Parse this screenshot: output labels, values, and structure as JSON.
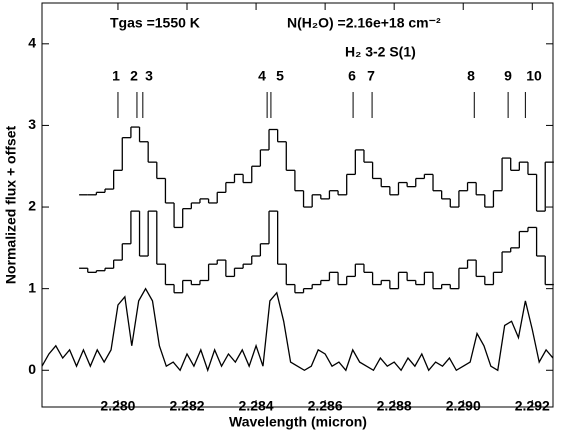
{
  "chart_data": {
    "type": "line",
    "xlabel": "Wavelength (micron)",
    "ylabel": "Normalized flux + offset",
    "annotations": [
      "Tgas =1550 K",
      "N(H₂O) =2.16e+18 cm⁻²",
      "H₂ 3-2 S(1)"
    ],
    "line_markers": {
      "labels": [
        "1",
        "2",
        "3",
        "4",
        "5",
        "6",
        "7",
        "8",
        "9",
        "10"
      ],
      "x": [
        2.28,
        2.28055,
        2.28072,
        2.28432,
        2.28443,
        2.28681,
        2.28736,
        2.29032,
        2.2913,
        2.2918
      ]
    },
    "xlim": [
      2.2778,
      2.2926
    ],
    "ylim": [
      -0.45,
      4.5
    ],
    "xticks": [
      {
        "value": 2.28,
        "label": "2.280"
      },
      {
        "value": 2.282,
        "label": "2.282"
      },
      {
        "value": 2.284,
        "label": "2.284"
      },
      {
        "value": 2.286,
        "label": "2.286"
      },
      {
        "value": 2.288,
        "label": "2.288"
      },
      {
        "value": 2.29,
        "label": "2.290"
      },
      {
        "value": 2.292,
        "label": "2.292"
      }
    ],
    "yticks": [
      0,
      1,
      2,
      3,
      4
    ],
    "series": [
      {
        "color": "#000000",
        "step": true,
        "x": [
          2.279,
          2.27925,
          2.2795,
          2.27975,
          2.28,
          2.28025,
          2.2805,
          2.28075,
          2.281,
          2.28125,
          2.2815,
          2.28175,
          2.282,
          2.28225,
          2.2825,
          2.28275,
          2.283,
          2.28325,
          2.2835,
          2.28375,
          2.284,
          2.28425,
          2.2845,
          2.28475,
          2.285,
          2.28525,
          2.2855,
          2.28575,
          2.286,
          2.28625,
          2.2865,
          2.28675,
          2.287,
          2.28725,
          2.2875,
          2.28775,
          2.288,
          2.28825,
          2.2885,
          2.28875,
          2.289,
          2.28925,
          2.2895,
          2.28975,
          2.29,
          2.29025,
          2.2905,
          2.29075,
          2.291,
          2.29125,
          2.2915,
          2.29175,
          2.292,
          2.29225,
          2.2925
        ],
        "values": [
          2.15,
          2.15,
          2.18,
          2.22,
          2.45,
          2.85,
          2.98,
          2.8,
          2.55,
          2.35,
          2.05,
          1.75,
          1.98,
          2.05,
          2.1,
          2.05,
          2.18,
          2.3,
          2.4,
          2.3,
          2.5,
          2.7,
          2.95,
          2.8,
          2.45,
          2.2,
          2.0,
          2.15,
          2.1,
          2.2,
          2.15,
          2.4,
          2.7,
          2.55,
          2.35,
          2.25,
          2.15,
          2.3,
          2.25,
          2.35,
          2.4,
          2.2,
          2.1,
          2.0,
          2.2,
          2.3,
          2.15,
          2.0,
          2.2,
          2.6,
          2.45,
          2.55,
          2.4,
          1.95,
          2.55
        ]
      },
      {
        "color": "#000000",
        "step": true,
        "x": [
          2.279,
          2.27925,
          2.2795,
          2.27975,
          2.28,
          2.28025,
          2.2805,
          2.28075,
          2.281,
          2.28125,
          2.2815,
          2.28175,
          2.282,
          2.28225,
          2.2825,
          2.28275,
          2.283,
          2.28325,
          2.2835,
          2.28375,
          2.284,
          2.28425,
          2.2845,
          2.28475,
          2.285,
          2.28525,
          2.2855,
          2.28575,
          2.286,
          2.28625,
          2.2865,
          2.28675,
          2.287,
          2.28725,
          2.2875,
          2.28775,
          2.288,
          2.28825,
          2.2885,
          2.28875,
          2.289,
          2.28925,
          2.2895,
          2.28975,
          2.29,
          2.29025,
          2.2905,
          2.29075,
          2.291,
          2.29125,
          2.2915,
          2.29175,
          2.292,
          2.29225,
          2.2925
        ],
        "values": [
          1.25,
          1.2,
          1.22,
          1.25,
          1.35,
          1.55,
          1.95,
          1.4,
          1.95,
          1.3,
          1.05,
          0.95,
          1.1,
          1.05,
          1.1,
          1.3,
          1.35,
          1.15,
          1.25,
          1.3,
          1.4,
          1.55,
          1.95,
          1.3,
          1.05,
          0.95,
          1.0,
          1.05,
          1.1,
          1.2,
          1.05,
          1.15,
          1.3,
          1.2,
          1.05,
          1.1,
          1.0,
          1.2,
          1.1,
          1.05,
          1.2,
          1.0,
          1.05,
          1.0,
          1.25,
          1.35,
          1.15,
          1.05,
          1.2,
          1.45,
          1.5,
          1.7,
          1.75,
          1.4,
          1.05
        ]
      },
      {
        "color": "#000000",
        "step": false,
        "x": [
          2.2778,
          2.278,
          2.2782,
          2.2784,
          2.2786,
          2.2788,
          2.279,
          2.2792,
          2.2794,
          2.2796,
          2.2798,
          2.28,
          2.2802,
          2.2804,
          2.2806,
          2.2808,
          2.281,
          2.2812,
          2.2814,
          2.2816,
          2.2818,
          2.282,
          2.2822,
          2.2824,
          2.2826,
          2.2828,
          2.283,
          2.2832,
          2.2834,
          2.2836,
          2.2838,
          2.284,
          2.2842,
          2.2844,
          2.2846,
          2.2848,
          2.285,
          2.2852,
          2.2854,
          2.2856,
          2.2858,
          2.286,
          2.2862,
          2.2864,
          2.2866,
          2.2868,
          2.287,
          2.2872,
          2.2874,
          2.2876,
          2.2878,
          2.288,
          2.2882,
          2.2884,
          2.2886,
          2.2888,
          2.289,
          2.2892,
          2.2894,
          2.2896,
          2.2898,
          2.29,
          2.2902,
          2.2904,
          2.2906,
          2.2908,
          2.291,
          2.2912,
          2.2914,
          2.2916,
          2.2918,
          2.292,
          2.2922,
          2.2924,
          2.2926
        ],
        "values": [
          0.05,
          0.2,
          0.3,
          0.15,
          0.25,
          0.05,
          0.25,
          0.05,
          0.25,
          0.1,
          0.25,
          0.8,
          0.9,
          0.3,
          0.85,
          1.0,
          0.85,
          0.3,
          0.05,
          0.1,
          0.0,
          0.2,
          0.05,
          0.25,
          0.0,
          0.25,
          0.05,
          0.2,
          0.1,
          0.25,
          0.05,
          0.3,
          0.05,
          0.85,
          0.95,
          0.6,
          0.1,
          0.05,
          0.0,
          0.05,
          0.25,
          0.2,
          0.05,
          0.1,
          0.0,
          0.25,
          0.1,
          0.05,
          0.0,
          0.15,
          0.05,
          0.1,
          0.0,
          0.15,
          0.05,
          0.2,
          0.0,
          0.1,
          0.05,
          0.15,
          0.0,
          0.05,
          0.1,
          0.45,
          0.3,
          0.05,
          0.0,
          0.55,
          0.6,
          0.4,
          0.85,
          0.5,
          0.1,
          0.25,
          0.15
        ]
      }
    ]
  }
}
